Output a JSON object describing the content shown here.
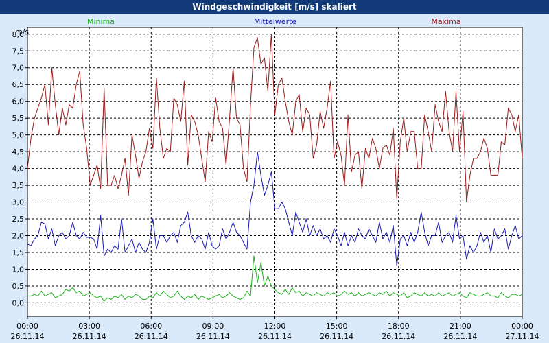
{
  "window": {
    "title": "Windgeschwindigkeit [m/s] skaliert"
  },
  "chart_data": {
    "type": "line",
    "title": "Windgeschwindigkeit [m/s] skaliert",
    "ylabel": "m/s",
    "xlabel": "",
    "ylim": [
      -0.4,
      8.2
    ],
    "xlim": [
      0,
      24
    ],
    "grid": true,
    "y_ticks": [
      "0,0",
      "0,5",
      "1,0",
      "1,5",
      "2,0",
      "2,5",
      "3,0",
      "3,5",
      "4,0",
      "4,5",
      "5,0",
      "5,5",
      "6,0",
      "6,5",
      "7,0",
      "7,5",
      "8,0"
    ],
    "y_tick_values": [
      0,
      0.5,
      1,
      1.5,
      2,
      2.5,
      3,
      3.5,
      4,
      4.5,
      5,
      5.5,
      6,
      6.5,
      7,
      7.5,
      8
    ],
    "x_ticks": [
      {
        "time": "00:00",
        "date": "26.11.14",
        "hour": 0
      },
      {
        "time": "03:00",
        "date": "26.11.14",
        "hour": 3
      },
      {
        "time": "06:00",
        "date": "26.11.14",
        "hour": 6
      },
      {
        "time": "09:00",
        "date": "26.11.14",
        "hour": 9
      },
      {
        "time": "12:00",
        "date": "26.11.14",
        "hour": 12
      },
      {
        "time": "15:00",
        "date": "26.11.14",
        "hour": 15
      },
      {
        "time": "18:00",
        "date": "26.11.14",
        "hour": 18
      },
      {
        "time": "21:00",
        "date": "26.11.14",
        "hour": 21
      },
      {
        "time": "00:00",
        "date": "27.11.14",
        "hour": 24
      }
    ],
    "series": [
      {
        "name": "Minima",
        "color": "#1bb31b",
        "legend_position": "left",
        "values": [
          0.2,
          0.2,
          0.25,
          0.2,
          0.35,
          0.2,
          0.25,
          0.3,
          0.15,
          0.2,
          0.25,
          0.4,
          0.35,
          0.45,
          0.3,
          0.35,
          0.2,
          0.25,
          0.3,
          0.2,
          0.15,
          0.2,
          0.05,
          0.15,
          0.1,
          0.2,
          0.15,
          0.25,
          0.1,
          0.2,
          0.15,
          0.25,
          0.2,
          0.1,
          0.1,
          0.2,
          0.15,
          0.3,
          0.2,
          0.35,
          0.25,
          0.15,
          0.2,
          0.35,
          0.2,
          0.1,
          0.2,
          0.15,
          0.25,
          0.1,
          0.2,
          0.15,
          0.1,
          0.15,
          0.2,
          0.25,
          0.15,
          0.2,
          0.3,
          0.2,
          0.15,
          0.1,
          0.15,
          0.35,
          0.2,
          1.4,
          0.6,
          1.2,
          0.5,
          0.8,
          0.5,
          0.4,
          0.3,
          0.25,
          0.4,
          0.25,
          0.45,
          0.3,
          0.35,
          0.2,
          0.3,
          0.25,
          0.2,
          0.3,
          0.25,
          0.2,
          0.3,
          0.25,
          0.3,
          0.2,
          0.25,
          0.35,
          0.25,
          0.3,
          0.2,
          0.3,
          0.2,
          0.25,
          0.3,
          0.25,
          0.2,
          0.3,
          0.25,
          0.35,
          0.2,
          0.3,
          0.25,
          0.2,
          0.3,
          0.15,
          0.2,
          0.3,
          0.25,
          0.2,
          0.3,
          0.2,
          0.25,
          0.2,
          0.3,
          0.2,
          0.25,
          0.3,
          0.2,
          0.25,
          0.3,
          0.2,
          0.15,
          0.3,
          0.25,
          0.2,
          0.2,
          0.25,
          0.3,
          0.2,
          0.2,
          0.15,
          0.3,
          0.2,
          0.15,
          0.25,
          0.25,
          0.2,
          0.25
        ]
      },
      {
        "name": "Mittelwerte",
        "color": "#1818b4",
        "legend_position": "center",
        "values": [
          1.75,
          1.7,
          1.9,
          2.0,
          2.4,
          2.35,
          1.9,
          2.2,
          1.7,
          2.0,
          2.1,
          1.9,
          2.0,
          2.4,
          2.0,
          1.9,
          2.1,
          1.95,
          1.95,
          1.9,
          1.6,
          2.6,
          1.4,
          1.6,
          1.5,
          1.7,
          1.6,
          2.5,
          1.5,
          1.7,
          1.9,
          1.5,
          1.8,
          1.6,
          1.5,
          1.8,
          2.5,
          1.6,
          2.0,
          2.0,
          1.8,
          2.0,
          2.1,
          1.8,
          2.3,
          2.4,
          2.7,
          2.0,
          1.8,
          2.0,
          1.9,
          1.6,
          2.1,
          1.7,
          1.6,
          1.7,
          2.2,
          1.9,
          2.1,
          2.4,
          2.1,
          2.0,
          1.8,
          1.6,
          3.0,
          3.5,
          4.5,
          3.8,
          3.2,
          3.5,
          3.9,
          2.8,
          2.8,
          3.0,
          2.8,
          2.4,
          2.0,
          2.7,
          2.4,
          2.1,
          2.5,
          2.0,
          2.3,
          2.0,
          2.2,
          1.9,
          2.0,
          1.8,
          2.2,
          2.0,
          1.7,
          2.1,
          1.7,
          2.0,
          1.8,
          2.2,
          2.0,
          1.9,
          2.2,
          2.0,
          1.8,
          2.4,
          1.9,
          2.1,
          1.8,
          2.3,
          1.1,
          1.9,
          2.0,
          1.7,
          2.1,
          1.8,
          2.1,
          2.7,
          2.1,
          1.7,
          2.0,
          2.0,
          2.4,
          1.8,
          2.0,
          2.1,
          1.8,
          2.6,
          1.9,
          2.0,
          1.3,
          1.7,
          1.5,
          1.7,
          2.1,
          1.8,
          2.0,
          1.5,
          2.2,
          1.9,
          2.0,
          2.2,
          1.6,
          2.0,
          2.3,
          1.9,
          2.0
        ]
      },
      {
        "name": "Maxima",
        "color": "#9a1a1a",
        "legend_position": "right",
        "values": [
          4.0,
          4.9,
          5.5,
          5.8,
          6.1,
          6.5,
          5.3,
          7.0,
          5.9,
          5.0,
          5.8,
          5.3,
          5.9,
          5.8,
          6.5,
          6.9,
          5.3,
          4.6,
          3.5,
          3.8,
          4.1,
          3.4,
          6.4,
          3.5,
          3.5,
          3.8,
          3.4,
          3.8,
          4.3,
          3.2,
          5.0,
          4.4,
          3.7,
          4.2,
          4.5,
          5.2,
          4.6,
          6.7,
          5.2,
          4.3,
          4.6,
          4.5,
          6.1,
          5.9,
          5.4,
          6.6,
          4.1,
          5.6,
          5.4,
          5.0,
          4.3,
          3.6,
          5.1,
          4.8,
          6.1,
          5.4,
          5.2,
          4.1,
          5.5,
          7.0,
          5.5,
          5.3,
          4.0,
          3.6,
          5.9,
          7.6,
          7.9,
          7.1,
          7.3,
          6.3,
          8.0,
          5.6,
          6.5,
          6.7,
          6.0,
          5.4,
          5.0,
          6.0,
          6.2,
          5.1,
          5.8,
          5.6,
          4.3,
          4.7,
          5.7,
          5.2,
          5.8,
          6.6,
          4.3,
          4.8,
          4.4,
          3.5,
          5.6,
          3.9,
          4.4,
          4.5,
          3.4,
          4.6,
          4.3,
          4.9,
          4.6,
          4.0,
          4.6,
          4.7,
          4.4,
          5.2,
          3.1,
          4.8,
          5.5,
          4.5,
          5.1,
          5.1,
          4.0,
          4.0,
          5.6,
          5.1,
          4.5,
          5.9,
          5.4,
          5.1,
          6.3,
          5.1,
          4.5,
          6.3,
          4.5,
          5.7,
          3.0,
          3.8,
          4.3,
          4.3,
          4.5,
          4.9,
          4.6,
          3.8,
          3.8,
          3.8,
          4.8,
          4.7,
          5.8,
          5.6,
          5.1,
          5.6,
          4.3
        ]
      }
    ]
  }
}
